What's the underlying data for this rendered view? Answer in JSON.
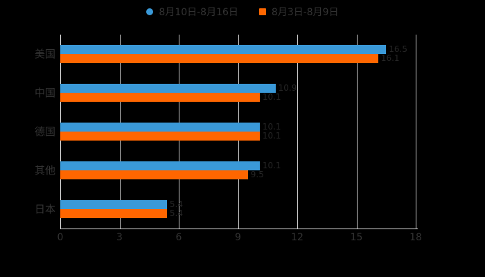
{
  "background": "#000000",
  "legend": {
    "items": [
      {
        "label": "8月10日-8月16日",
        "color": "#3A99D8",
        "shape": "circle"
      },
      {
        "label": "8月3日-8月9日",
        "color": "#FF6600",
        "shape": "square"
      }
    ]
  },
  "chart_data": {
    "type": "bar",
    "orientation": "horizontal",
    "title": "",
    "xlabel": "",
    "ylabel": "",
    "categories": [
      "美国",
      "中国",
      "德国",
      "其他",
      "日本"
    ],
    "series": [
      {
        "name": "8月10日-8月16日",
        "color": "#3A99D8",
        "values": [
          16.5,
          10.9,
          10.1,
          10.1,
          5.4
        ]
      },
      {
        "name": "8月3日-8月9日",
        "color": "#FF6600",
        "values": [
          16.1,
          10.1,
          10.1,
          9.5,
          5.4
        ]
      }
    ],
    "xlim": [
      0,
      18
    ],
    "xticks": [
      0,
      3,
      6,
      9,
      12,
      15,
      18
    ],
    "grid": true,
    "legend_position": "top-center",
    "text_color": "#333333",
    "grid_color": "#cccccc",
    "axis_color": "#dddddd",
    "value_label_color": "#262626"
  }
}
